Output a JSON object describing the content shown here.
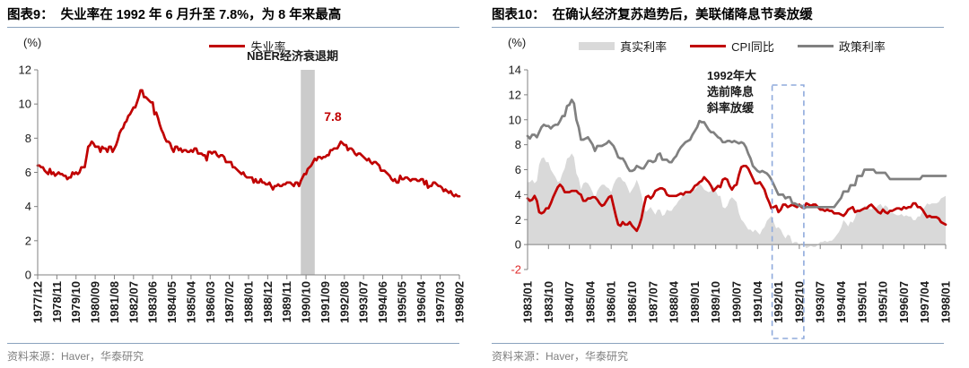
{
  "panels": [
    {
      "title": "图表9：  失业率在 1992 年 6 月升至 7.8%，为 8 年来最高",
      "unit": "(%)",
      "source": "资料来源：Haver，华泰研究"
    },
    {
      "title": "图表10：  在确认经济复苏趋势后，美联储降息节奏放缓",
      "unit": "(%)",
      "source": "资料来源：Haver，华泰研究"
    }
  ],
  "chart_data": [
    {
      "type": "line",
      "title": "失业率在1992年6月升至7.8%，为8年来最高",
      "xlabel": "",
      "ylabel": "(%)",
      "ylim": [
        0,
        12
      ],
      "grid": false,
      "legend_position": "top",
      "x_range": [
        "1977/12",
        "1998/02"
      ],
      "yticks": [
        12,
        10,
        8,
        6,
        4,
        2,
        0
      ],
      "xticks": [
        "1977/12",
        "1978/11",
        "1979/10",
        "1980/09",
        "1981/08",
        "1982/07",
        "1983/06",
        "1984/05",
        "1985/04",
        "1986/03",
        "1987/02",
        "1988/01",
        "1988/12",
        "1989/11",
        "1990/10",
        "1991/09",
        "1992/08",
        "1993/07",
        "1994/06",
        "1995/05",
        "1996/04",
        "1997/03",
        "1998/02"
      ],
      "xtick_every_months": 11,
      "legend": [
        {
          "name": "失业率",
          "kind": "line",
          "color": "#C00000"
        }
      ],
      "recession_band": {
        "label": "NBER经济衰退期",
        "from": "1990/07",
        "to": "1991/03",
        "color": "#CBCBCB"
      },
      "peak_annotation": {
        "label": "7.8",
        "at": "1992/06",
        "value": 7.8
      },
      "series": [
        {
          "name": "失业率",
          "kind": "line",
          "color": "#C00000",
          "values": [
            6.4,
            6.4,
            6.3,
            6.3,
            6.1,
            6.0,
            5.9,
            6.2,
            5.9,
            6.0,
            5.8,
            5.9,
            6.0,
            5.9,
            5.9,
            5.8,
            5.8,
            5.6,
            5.7,
            5.7,
            6.0,
            5.9,
            6.0,
            5.9,
            6.0,
            6.3,
            6.3,
            6.3,
            6.9,
            7.5,
            7.6,
            7.8,
            7.7,
            7.5,
            7.5,
            7.5,
            7.2,
            7.5,
            7.4,
            7.4,
            7.2,
            7.5,
            7.5,
            7.2,
            7.4,
            7.6,
            7.9,
            8.3,
            8.5,
            8.6,
            8.9,
            9.0,
            9.3,
            9.4,
            9.6,
            9.8,
            9.8,
            10.1,
            10.4,
            10.8,
            10.8,
            10.4,
            10.4,
            10.3,
            10.2,
            10.1,
            10.1,
            9.4,
            9.5,
            9.2,
            8.8,
            8.5,
            8.3,
            8.0,
            7.8,
            7.8,
            7.7,
            7.4,
            7.2,
            7.5,
            7.5,
            7.3,
            7.4,
            7.2,
            7.3,
            7.3,
            7.2,
            7.2,
            7.3,
            7.2,
            7.4,
            7.4,
            7.1,
            7.1,
            7.1,
            7.0,
            7.0,
            6.7,
            7.2,
            7.2,
            7.1,
            7.2,
            7.2,
            7.0,
            6.9,
            7.0,
            7.0,
            6.9,
            6.6,
            6.6,
            6.6,
            6.6,
            6.3,
            6.3,
            6.2,
            6.1,
            6.0,
            5.9,
            6.0,
            5.8,
            5.7,
            5.7,
            5.7,
            5.7,
            5.4,
            5.6,
            5.4,
            5.4,
            5.6,
            5.4,
            5.4,
            5.3,
            5.3,
            5.4,
            5.2,
            5.0,
            5.2,
            5.2,
            5.3,
            5.2,
            5.2,
            5.3,
            5.3,
            5.4,
            5.4,
            5.4,
            5.3,
            5.2,
            5.4,
            5.4,
            5.2,
            5.5,
            5.7,
            5.9,
            5.9,
            6.2,
            6.3,
            6.4,
            6.6,
            6.8,
            6.7,
            6.9,
            6.9,
            6.8,
            6.9,
            6.9,
            7.0,
            7.0,
            7.3,
            7.3,
            7.4,
            7.4,
            7.4,
            7.6,
            7.8,
            7.7,
            7.6,
            7.6,
            7.3,
            7.4,
            7.4,
            7.3,
            7.1,
            7.0,
            7.1,
            7.1,
            7.0,
            6.9,
            6.8,
            6.7,
            6.8,
            6.6,
            6.5,
            6.6,
            6.6,
            6.5,
            6.4,
            6.1,
            6.1,
            6.1,
            6.0,
            5.9,
            5.8,
            5.6,
            5.5,
            5.6,
            5.4,
            5.4,
            5.8,
            5.6,
            5.6,
            5.7,
            5.7,
            5.6,
            5.5,
            5.6,
            5.6,
            5.6,
            5.5,
            5.5,
            5.6,
            5.6,
            5.3,
            5.5,
            5.1,
            5.2,
            5.2,
            5.4,
            5.4,
            5.3,
            5.2,
            5.2,
            5.1,
            4.9,
            5.0,
            4.9,
            4.8,
            4.9,
            4.7,
            4.6,
            4.7,
            4.6,
            4.6
          ]
        }
      ]
    },
    {
      "type": "line",
      "title": "在确认经济复苏趋势后，美联储降息节奏放缓",
      "xlabel": "",
      "ylabel": "(%)",
      "ylim": [
        -2,
        14
      ],
      "grid": false,
      "legend_position": "top",
      "x_range": [
        "1983/01",
        "1998/01"
      ],
      "yticks": [
        14,
        12,
        10,
        8,
        6,
        4,
        2,
        0,
        -2
      ],
      "xticks": [
        "1983/01",
        "1983/10",
        "1984/07",
        "1985/04",
        "1986/01",
        "1986/10",
        "1987/07",
        "1988/04",
        "1989/01",
        "1989/10",
        "1990/07",
        "1991/04",
        "1992/01",
        "1992/10",
        "1993/07",
        "1994/04",
        "1995/01",
        "1995/10",
        "1996/07",
        "1997/04",
        "1998/01"
      ],
      "xtick_every_months": 9,
      "legend": [
        {
          "name": "真实利率",
          "kind": "area",
          "color": "#D9D9D9"
        },
        {
          "name": "CPI同比",
          "kind": "line",
          "color": "#C00000"
        },
        {
          "name": "政策利率",
          "kind": "line",
          "color": "#808080"
        }
      ],
      "highlight_box": {
        "label": "1992年大选前降息斜率放缓",
        "from": "1992/01",
        "to": "1992/10",
        "color": "#8FAADC"
      },
      "series": [
        {
          "name": "真实利率",
          "kind": "area",
          "color": "#D9D9D9",
          "derived_from": [
            "政策利率",
            "CPI同比"
          ],
          "note": "政策利率减CPI同比"
        },
        {
          "name": "CPI同比",
          "kind": "line",
          "color": "#C00000",
          "values": [
            3.7,
            3.5,
            3.6,
            3.9,
            3.5,
            2.6,
            2.5,
            2.6,
            2.9,
            2.9,
            3.3,
            3.8,
            4.2,
            4.6,
            4.8,
            4.6,
            4.2,
            4.2,
            4.2,
            4.3,
            4.3,
            4.3,
            4.1,
            4.0,
            3.5,
            3.5,
            3.7,
            3.7,
            3.8,
            3.8,
            3.6,
            3.3,
            3.1,
            3.2,
            3.5,
            3.8,
            3.9,
            3.1,
            2.3,
            1.6,
            1.5,
            1.8,
            1.6,
            1.6,
            1.8,
            1.5,
            1.3,
            1.1,
            1.5,
            2.1,
            3.0,
            3.8,
            3.9,
            3.7,
            3.9,
            4.3,
            4.4,
            4.5,
            4.5,
            4.4,
            4.0,
            3.9,
            3.9,
            3.9,
            3.9,
            4.0,
            4.1,
            4.0,
            4.2,
            4.2,
            4.2,
            4.4,
            4.7,
            4.8,
            5.0,
            5.1,
            5.4,
            5.2,
            5.0,
            4.7,
            4.3,
            4.5,
            4.7,
            4.6,
            5.2,
            5.3,
            5.2,
            4.7,
            4.4,
            4.7,
            4.8,
            5.6,
            6.2,
            6.3,
            6.3,
            6.1,
            5.7,
            5.3,
            4.9,
            4.9,
            5.0,
            4.7,
            4.4,
            3.8,
            3.4,
            2.9,
            3.0,
            3.1,
            2.6,
            2.8,
            3.2,
            3.2,
            3.0,
            3.1,
            3.2,
            3.1,
            3.0,
            3.2,
            3.0,
            2.9,
            3.3,
            3.2,
            3.1,
            3.2,
            3.2,
            3.0,
            2.8,
            2.8,
            2.7,
            2.8,
            2.7,
            2.7,
            2.5,
            2.5,
            2.5,
            2.4,
            2.3,
            2.5,
            2.8,
            2.9,
            3.0,
            2.6,
            2.7,
            2.7,
            2.8,
            2.9,
            2.9,
            3.1,
            3.2,
            3.0,
            2.8,
            2.6,
            2.5,
            2.8,
            2.6,
            2.5,
            2.7,
            2.7,
            2.8,
            2.9,
            2.9,
            2.8,
            3.0,
            2.9,
            3.0,
            3.0,
            3.3,
            3.3,
            3.0,
            3.0,
            2.8,
            2.5,
            2.2,
            2.3,
            2.2,
            2.2,
            2.2,
            2.1,
            1.8,
            1.7,
            1.6
          ]
        },
        {
          "name": "政策利率",
          "kind": "line",
          "color": "#808080",
          "values": [
            8.7,
            8.5,
            8.8,
            8.8,
            8.6,
            9.0,
            9.4,
            9.6,
            9.5,
            9.5,
            9.3,
            9.5,
            9.6,
            9.6,
            9.9,
            10.3,
            10.3,
            11.1,
            11.2,
            11.6,
            11.3,
            10.0,
            9.4,
            8.4,
            8.4,
            8.5,
            8.6,
            8.3,
            8.0,
            7.5,
            7.9,
            7.9,
            7.9,
            8.0,
            8.1,
            8.3,
            8.1,
            7.9,
            7.5,
            7.0,
            6.9,
            6.9,
            6.6,
            6.2,
            5.9,
            5.9,
            6.0,
            6.3,
            6.2,
            6.1,
            6.1,
            6.4,
            6.7,
            6.7,
            6.6,
            6.7,
            7.2,
            7.3,
            6.8,
            6.8,
            6.8,
            6.6,
            6.6,
            6.9,
            7.1,
            7.5,
            7.8,
            8.0,
            8.2,
            8.3,
            8.4,
            8.8,
            9.1,
            9.4,
            9.9,
            9.8,
            9.8,
            9.5,
            9.2,
            9.0,
            9.0,
            8.8,
            8.6,
            8.5,
            8.2,
            8.2,
            8.3,
            8.3,
            8.2,
            8.3,
            8.2,
            8.1,
            8.2,
            8.1,
            7.8,
            7.3,
            6.9,
            6.3,
            6.1,
            5.9,
            5.8,
            5.9,
            5.8,
            5.7,
            5.5,
            5.2,
            4.8,
            4.4,
            4.0,
            4.0,
            4.0,
            3.7,
            3.8,
            3.8,
            3.3,
            3.3,
            3.2,
            3.1,
            3.1,
            2.9,
            3.0,
            3.0,
            3.0,
            3.0,
            3.0,
            3.0,
            3.0,
            3.0,
            3.0,
            3.0,
            3.0,
            3.0,
            3.0,
            3.25,
            3.5,
            3.75,
            4.25,
            4.25,
            4.25,
            4.75,
            4.75,
            4.75,
            5.5,
            5.5,
            5.5,
            6.0,
            6.0,
            6.0,
            6.0,
            6.0,
            5.75,
            5.75,
            5.75,
            5.75,
            5.75,
            5.5,
            5.25,
            5.25,
            5.25,
            5.25,
            5.25,
            5.25,
            5.25,
            5.25,
            5.25,
            5.25,
            5.25,
            5.25,
            5.25,
            5.25,
            5.5,
            5.5,
            5.5,
            5.5,
            5.5,
            5.5,
            5.5,
            5.5,
            5.5,
            5.5,
            5.5
          ]
        }
      ]
    }
  ]
}
